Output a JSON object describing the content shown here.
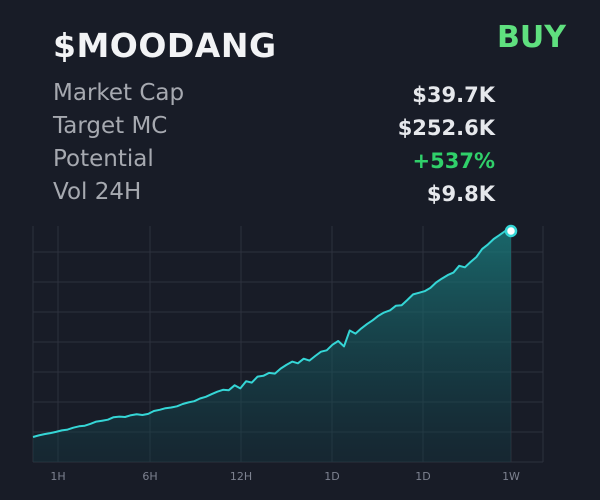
{
  "token": {
    "ticker": "$MOODANG",
    "action_label": "BUY",
    "action_color": "#5fe07f"
  },
  "stats": [
    {
      "label": "Market Cap",
      "value": "$39.7K"
    },
    {
      "label": "Target MC",
      "value": "$252.6K"
    },
    {
      "label": "Potential",
      "value": "+537%",
      "positive": true
    },
    {
      "label": "Vol 24H",
      "value": "$9.8K"
    }
  ],
  "chart_data": {
    "type": "area",
    "x_tick_labels": [
      "1H",
      "6H",
      "12H",
      "1D",
      "1D",
      "1W"
    ],
    "series": [
      {
        "values": [
          0.0,
          0.8,
          1.4,
          1.9,
          2.5,
          3.2,
          3.6,
          4.5,
          5.2,
          5.5,
          6.4,
          7.5,
          7.9,
          8.4,
          9.6,
          9.9,
          9.7,
          10.6,
          11.0,
          10.7,
          11.2,
          12.6,
          13.2,
          14.0,
          14.3,
          14.9,
          16.0,
          16.8,
          17.4,
          18.7,
          19.5,
          20.8,
          22.0,
          22.9,
          22.7,
          25.1,
          23.6,
          27.1,
          26.4,
          29.3,
          29.7,
          31.1,
          30.8,
          33.2,
          35.0,
          36.6,
          35.8,
          38.0,
          37.1,
          39.3,
          41.4,
          42.1,
          44.8,
          46.6,
          44.0,
          51.7,
          50.2,
          52.7,
          54.8,
          56.7,
          58.9,
          60.5,
          61.5,
          63.7,
          64.0,
          66.5,
          69.2,
          70.0,
          70.8,
          72.4,
          75.0,
          76.9,
          78.6,
          79.8,
          83.1,
          82.4,
          85.0,
          87.4,
          91.3,
          93.5,
          96.1,
          98.0,
          100.0,
          100.0
        ],
        "color": "#35d6d6"
      }
    ],
    "ylim": [
      0,
      100
    ],
    "grid": true,
    "end_marker": true
  },
  "colors": {
    "background": "#181c27",
    "grid": "#2d323d",
    "line": "#35d6d6",
    "fill_top": "#1a7f80",
    "positive": "#30d06a"
  }
}
